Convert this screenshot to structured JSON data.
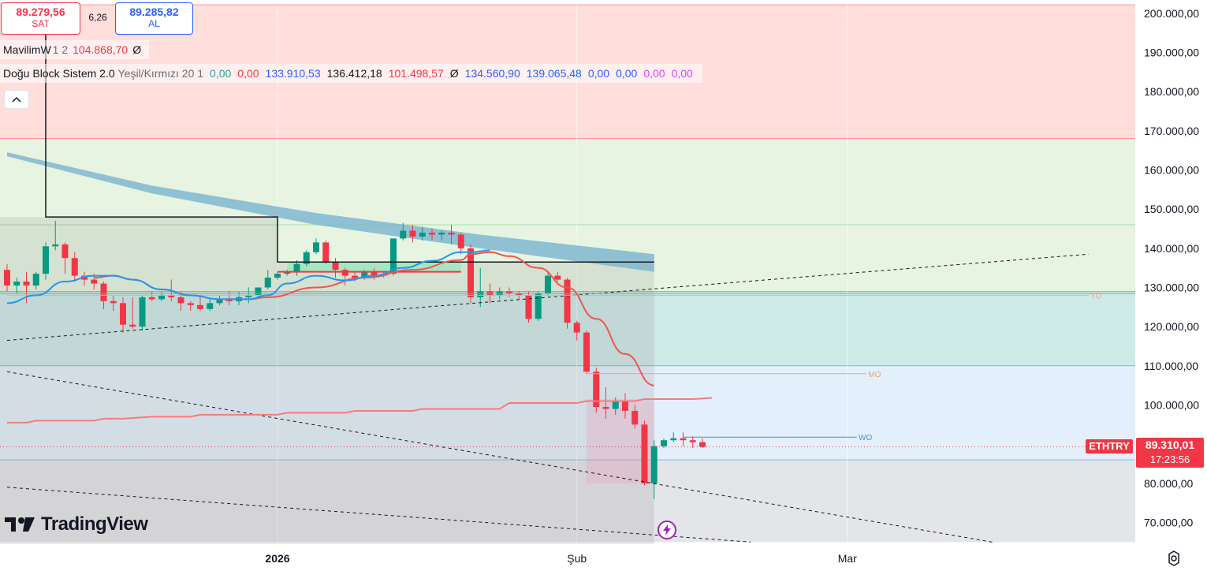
{
  "header": {
    "sell_price": "89.279,56",
    "sell_label": "SAT",
    "spread": "6,26",
    "buy_price": "89.285,82",
    "buy_label": "AL"
  },
  "legend": {
    "ind1_name": "MavilimW",
    "ind1_params": "1 2",
    "ind1_value": "104.868,70",
    "ind1_zero": "Ø",
    "ind2_name": "Doğu Block Sistem 2.0",
    "ind2_params": "Yeşil/Kırmızı 20 1",
    "ind2_values": [
      "0,00",
      "0,00",
      "133.910,53",
      "136.412,18",
      "101.498,57",
      "Ø",
      "134.560,90",
      "139.065,48",
      "0,00",
      "0,00",
      "0,00",
      "0,00"
    ],
    "ind2_colors": [
      "#26a69a",
      "#f23645",
      "#2962ff",
      "#131722",
      "#f23645",
      "#131722",
      "#2962ff",
      "#2962ff",
      "#2962ff",
      "#2962ff",
      "#e040fb",
      "#e040fb"
    ]
  },
  "colors": {
    "up": "#089981",
    "down": "#f23645",
    "blue_ma": "#2196f3",
    "red_ma": "#f0564d",
    "band": "#7fb7d0",
    "price_tag": "#f23645"
  },
  "price_tag": {
    "symbol": "ETHTRY",
    "price": "89.310,01",
    "countdown": "17:23:56"
  },
  "levels": {
    "yo": "YO",
    "mo": "MO",
    "wo": "WO"
  },
  "branding": {
    "logo_text": "TradingView",
    "logo_mark": "17"
  },
  "chart_data": {
    "type": "candlestick",
    "symbol": "ETHTRY",
    "ylim": [
      65000,
      205000
    ],
    "y_ticks": [
      70000,
      80000,
      90000,
      100000,
      110000,
      120000,
      130000,
      140000,
      150000,
      160000,
      170000,
      180000,
      190000,
      200000
    ],
    "y_tick_labels": [
      "70.000,00",
      "80.000,00",
      "90.000,00",
      "100.000,00",
      "110.000,00",
      "120.000,00",
      "130.000,00",
      "140.000,00",
      "150.000,00",
      "160.000,00",
      "170.000,00",
      "180.000,00",
      "190.000,00",
      "200.000,00"
    ],
    "x_labels": [
      {
        "label": "2026",
        "day": 31
      },
      {
        "label": "Şub",
        "day": 62
      },
      {
        "label": "Mar",
        "day": 90
      }
    ],
    "x_range": [
      3,
      115
    ],
    "candles": [
      {
        "d": 3,
        "o": 134500,
        "h": 136000,
        "c": 130500,
        "l": 129000
      },
      {
        "d": 4,
        "o": 130500,
        "h": 132500,
        "c": 131500,
        "l": 128500
      },
      {
        "d": 5,
        "o": 131500,
        "h": 134000,
        "c": 130500,
        "l": 126000
      },
      {
        "d": 6,
        "o": 130500,
        "h": 134000,
        "c": 133500,
        "l": 129500
      },
      {
        "d": 7,
        "o": 133500,
        "h": 141500,
        "c": 140500,
        "l": 132000
      },
      {
        "d": 8,
        "o": 140500,
        "h": 147000,
        "c": 141000,
        "l": 139500
      },
      {
        "d": 9,
        "o": 141000,
        "h": 141500,
        "c": 137500,
        "l": 133500
      },
      {
        "d": 10,
        "o": 137500,
        "h": 139000,
        "c": 133000,
        "l": 131500
      },
      {
        "d": 11,
        "o": 133000,
        "h": 134000,
        "c": 132000,
        "l": 130500
      },
      {
        "d": 12,
        "o": 132000,
        "h": 133500,
        "c": 131000,
        "l": 129500
      },
      {
        "d": 13,
        "o": 131000,
        "h": 131500,
        "c": 126500,
        "l": 124500
      },
      {
        "d": 14,
        "o": 126500,
        "h": 128000,
        "c": 126000,
        "l": 124000
      },
      {
        "d": 15,
        "o": 126000,
        "h": 127500,
        "c": 120500,
        "l": 118500
      },
      {
        "d": 16,
        "o": 120500,
        "h": 127500,
        "c": 120000,
        "l": 119500
      },
      {
        "d": 17,
        "o": 120000,
        "h": 128000,
        "c": 127500,
        "l": 119000
      },
      {
        "d": 18,
        "o": 127500,
        "h": 129000,
        "c": 127000,
        "l": 126500
      },
      {
        "d": 19,
        "o": 127000,
        "h": 129000,
        "c": 128000,
        "l": 126500
      },
      {
        "d": 20,
        "o": 128000,
        "h": 132000,
        "c": 127500,
        "l": 126500
      },
      {
        "d": 21,
        "o": 127500,
        "h": 129000,
        "c": 126000,
        "l": 124000
      },
      {
        "d": 22,
        "o": 126000,
        "h": 126500,
        "c": 125500,
        "l": 124000
      },
      {
        "d": 23,
        "o": 125500,
        "h": 128000,
        "c": 124500,
        "l": 124000
      },
      {
        "d": 24,
        "o": 124500,
        "h": 127000,
        "c": 126000,
        "l": 124000
      },
      {
        "d": 25,
        "o": 126000,
        "h": 128000,
        "c": 127000,
        "l": 125500
      },
      {
        "d": 26,
        "o": 127000,
        "h": 129000,
        "c": 126500,
        "l": 125500
      },
      {
        "d": 27,
        "o": 126500,
        "h": 129000,
        "c": 127500,
        "l": 125500
      },
      {
        "d": 28,
        "o": 127500,
        "h": 130000,
        "c": 128000,
        "l": 126000
      },
      {
        "d": 29,
        "o": 128000,
        "h": 130000,
        "c": 130000,
        "l": 127500
      },
      {
        "d": 30,
        "o": 130000,
        "h": 134500,
        "c": 132500,
        "l": 129500
      },
      {
        "d": 31,
        "o": 132500,
        "h": 134000,
        "c": 133500,
        "l": 132000
      },
      {
        "d": 32,
        "o": 133500,
        "h": 134500,
        "c": 134000,
        "l": 133000
      },
      {
        "d": 33,
        "o": 134000,
        "h": 137000,
        "c": 136000,
        "l": 133000
      },
      {
        "d": 34,
        "o": 136000,
        "h": 139500,
        "c": 139000,
        "l": 135500
      },
      {
        "d": 35,
        "o": 139000,
        "h": 142500,
        "c": 141500,
        "l": 138500
      },
      {
        "d": 36,
        "o": 141500,
        "h": 142000,
        "c": 136500,
        "l": 136000
      },
      {
        "d": 37,
        "o": 136500,
        "h": 137500,
        "c": 134500,
        "l": 132500
      },
      {
        "d": 38,
        "o": 134500,
        "h": 135000,
        "c": 133000,
        "l": 130500
      },
      {
        "d": 39,
        "o": 133000,
        "h": 134000,
        "c": 132500,
        "l": 131500
      },
      {
        "d": 40,
        "o": 132500,
        "h": 134500,
        "c": 134000,
        "l": 132000
      },
      {
        "d": 41,
        "o": 134000,
        "h": 135000,
        "c": 133000,
        "l": 132000
      },
      {
        "d": 42,
        "o": 133000,
        "h": 134000,
        "c": 133500,
        "l": 132500
      },
      {
        "d": 43,
        "o": 133500,
        "h": 142500,
        "c": 142500,
        "l": 133000
      },
      {
        "d": 44,
        "o": 142500,
        "h": 146500,
        "c": 144500,
        "l": 142000
      },
      {
        "d": 45,
        "o": 144500,
        "h": 146000,
        "c": 143000,
        "l": 141500
      },
      {
        "d": 46,
        "o": 143000,
        "h": 145500,
        "c": 144000,
        "l": 142000
      },
      {
        "d": 47,
        "o": 144000,
        "h": 145000,
        "c": 143500,
        "l": 142000
      },
      {
        "d": 48,
        "o": 143500,
        "h": 144500,
        "c": 144000,
        "l": 142000
      },
      {
        "d": 49,
        "o": 144000,
        "h": 146000,
        "c": 143500,
        "l": 141000
      },
      {
        "d": 50,
        "o": 143500,
        "h": 144000,
        "c": 140000,
        "l": 138500
      },
      {
        "d": 51,
        "o": 140000,
        "h": 141000,
        "c": 127500,
        "l": 126000
      },
      {
        "d": 52,
        "o": 127500,
        "h": 135000,
        "c": 129000,
        "l": 125000
      },
      {
        "d": 53,
        "o": 129000,
        "h": 131000,
        "c": 128000,
        "l": 126000
      },
      {
        "d": 54,
        "o": 128000,
        "h": 130000,
        "c": 129000,
        "l": 127000
      },
      {
        "d": 55,
        "o": 129000,
        "h": 130000,
        "c": 128500,
        "l": 127500
      },
      {
        "d": 56,
        "o": 128500,
        "h": 129000,
        "c": 128000,
        "l": 127000
      },
      {
        "d": 57,
        "o": 128000,
        "h": 129000,
        "c": 122000,
        "l": 121000
      },
      {
        "d": 58,
        "o": 122000,
        "h": 129000,
        "c": 128500,
        "l": 121500
      },
      {
        "d": 59,
        "o": 128500,
        "h": 134000,
        "c": 133000,
        "l": 128000
      },
      {
        "d": 60,
        "o": 133000,
        "h": 134000,
        "c": 132000,
        "l": 131500
      },
      {
        "d": 61,
        "o": 132000,
        "h": 132500,
        "c": 121000,
        "l": 119500
      },
      {
        "d": 62,
        "o": 121000,
        "h": 121500,
        "c": 118500,
        "l": 116500
      },
      {
        "d": 63,
        "o": 118500,
        "h": 119000,
        "c": 108500,
        "l": 108000
      },
      {
        "d": 64,
        "o": 108500,
        "h": 109500,
        "c": 99500,
        "l": 98000
      },
      {
        "d": 65,
        "o": 99500,
        "h": 104500,
        "c": 99000,
        "l": 96500
      },
      {
        "d": 66,
        "o": 99000,
        "h": 102000,
        "c": 101000,
        "l": 97500
      },
      {
        "d": 67,
        "o": 101000,
        "h": 103000,
        "c": 98500,
        "l": 96500
      },
      {
        "d": 68,
        "o": 98500,
        "h": 100000,
        "c": 95000,
        "l": 94000
      },
      {
        "d": 69,
        "o": 95000,
        "h": 96000,
        "c": 80000,
        "l": 79500
      },
      {
        "d": 70,
        "o": 80000,
        "h": 91000,
        "c": 89500,
        "l": 76000
      },
      {
        "d": 71,
        "o": 89500,
        "h": 91500,
        "c": 91000,
        "l": 89000
      },
      {
        "d": 72,
        "o": 91000,
        "h": 93000,
        "c": 91500,
        "l": 90500
      },
      {
        "d": 73,
        "o": 91500,
        "h": 93000,
        "c": 91000,
        "l": 89500
      },
      {
        "d": 74,
        "o": 91000,
        "h": 92000,
        "c": 90500,
        "l": 89000
      },
      {
        "d": 75,
        "o": 90500,
        "h": 91500,
        "c": 89310,
        "l": 89000
      }
    ],
    "blue_ma": [
      [
        3,
        126000
      ],
      [
        6,
        128000
      ],
      [
        9,
        131500
      ],
      [
        12,
        133000
      ],
      [
        14,
        133000
      ],
      [
        16,
        132000
      ],
      [
        19,
        129500
      ],
      [
        22,
        128000
      ],
      [
        25,
        127000
      ],
      [
        28,
        127000
      ],
      [
        30,
        128000
      ],
      [
        32,
        131000
      ],
      [
        35,
        133000
      ],
      [
        38,
        131800
      ],
      [
        41,
        133000
      ],
      [
        44,
        135000
      ],
      [
        47,
        136800
      ],
      [
        50,
        139000
      ],
      [
        51,
        139000
      ],
      [
        53,
        139500
      ]
    ],
    "red_ma": [
      [
        12,
        132500
      ],
      [
        14,
        133000
      ],
      [
        16,
        132000
      ],
      [
        19,
        129500
      ],
      [
        22,
        128000
      ],
      [
        25,
        127000
      ],
      [
        28,
        127000
      ],
      [
        30,
        127500
      ],
      [
        35,
        130000
      ],
      [
        40,
        132500
      ],
      [
        45,
        134500
      ],
      [
        50,
        137000
      ],
      [
        51,
        138500
      ],
      [
        53,
        139000
      ],
      [
        55,
        138000
      ],
      [
        58,
        135000
      ],
      [
        61,
        130000
      ],
      [
        64,
        122000
      ],
      [
        67,
        113000
      ],
      [
        70,
        105000
      ]
    ],
    "mavilimw_line": [
      [
        3,
        95500
      ],
      [
        5,
        95500
      ],
      [
        6,
        96000
      ],
      [
        12,
        96000
      ],
      [
        13,
        96500
      ],
      [
        15,
        96500
      ],
      [
        18,
        97000
      ],
      [
        22,
        97000
      ],
      [
        23,
        97500
      ],
      [
        31,
        97500
      ],
      [
        32,
        98000
      ],
      [
        38,
        98000
      ],
      [
        39,
        98500
      ],
      [
        45,
        98500
      ],
      [
        46,
        99000
      ],
      [
        54,
        99000
      ],
      [
        55,
        100500
      ],
      [
        62,
        100500
      ],
      [
        63,
        101000
      ],
      [
        68,
        101000
      ],
      [
        69,
        101500
      ],
      [
        74,
        101500
      ],
      [
        76,
        101800
      ]
    ],
    "band_top": [
      [
        3,
        164500
      ],
      [
        18,
        156000
      ],
      [
        35,
        149000
      ],
      [
        52,
        143500
      ],
      [
        70,
        138500
      ]
    ],
    "band_bottom": [
      [
        3,
        163500
      ],
      [
        18,
        154000
      ],
      [
        35,
        146000
      ],
      [
        52,
        140000
      ],
      [
        70,
        134000
      ]
    ],
    "black_step": [
      [
        7,
        210000
      ],
      [
        7,
        148000
      ],
      [
        31,
        148000
      ],
      [
        31,
        136500
      ],
      [
        70,
        136500
      ]
    ],
    "red_box_line": [
      [
        31,
        134000
      ],
      [
        50,
        134000
      ]
    ],
    "dashed_lines": [
      [
        [
          3,
          116500
        ],
        [
          115,
          138500
        ]
      ],
      [
        [
          3,
          108500
        ],
        [
          105,
          65000
        ]
      ],
      [
        [
          3,
          79000
        ],
        [
          80,
          65000
        ]
      ],
      [
        [
          3,
          64000
        ],
        [
          40,
          58000
        ]
      ]
    ],
    "horizontal_levels": [
      {
        "label": "YO",
        "y": 128000,
        "x_start": 3,
        "x_end": 115
      },
      {
        "label": "MO",
        "y": 108000,
        "x_start": 63,
        "x_end": 92
      },
      {
        "label": "WO",
        "y": 91800,
        "x_start": 73,
        "x_end": 91
      }
    ],
    "zones": [
      {
        "from": 168000,
        "to": 205000,
        "color": "#ffdedc"
      },
      {
        "from": 129000,
        "to": 168000,
        "color": "#e6f4e1"
      },
      {
        "from": 110000,
        "to": 129000,
        "color": "#cdeae7"
      },
      {
        "from": 86000,
        "to": 110000,
        "color": "#e3f0fb"
      },
      {
        "from": 65000,
        "to": 86000,
        "color": "#e4e5e8"
      }
    ],
    "current_price": 89310
  }
}
